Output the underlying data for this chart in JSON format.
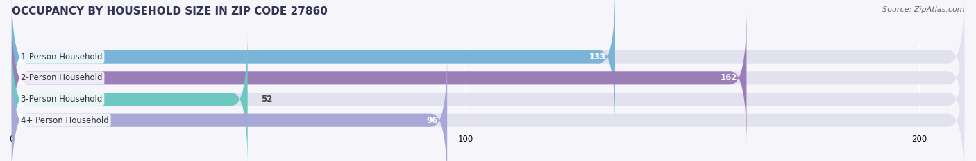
{
  "title": "OCCUPANCY BY HOUSEHOLD SIZE IN ZIP CODE 27860",
  "source": "Source: ZipAtlas.com",
  "categories": [
    "1-Person Household",
    "2-Person Household",
    "3-Person Household",
    "4+ Person Household"
  ],
  "values": [
    133,
    162,
    52,
    96
  ],
  "bar_colors": [
    "#7ab4d8",
    "#9b7db8",
    "#6cc8c0",
    "#a8a8d8"
  ],
  "xlim": [
    0,
    210
  ],
  "xticks": [
    0,
    100,
    200
  ],
  "background_color": "#f5f5fa",
  "bar_background_color": "#e2e2ee",
  "title_fontsize": 11,
  "source_fontsize": 8,
  "label_fontsize": 8.5,
  "value_fontsize": 8.5,
  "bar_height": 0.62,
  "figsize": [
    14.06,
    2.33
  ],
  "dpi": 100
}
